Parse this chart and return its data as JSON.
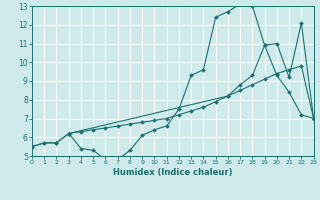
{
  "xlabel": "Humidex (Indice chaleur)",
  "xlim": [
    0,
    23
  ],
  "ylim": [
    5,
    13
  ],
  "xticks": [
    0,
    1,
    2,
    3,
    4,
    5,
    6,
    7,
    8,
    9,
    10,
    11,
    12,
    13,
    14,
    15,
    16,
    17,
    18,
    19,
    20,
    21,
    22,
    23
  ],
  "yticks": [
    5,
    6,
    7,
    8,
    9,
    10,
    11,
    12,
    13
  ],
  "bg_color": "#ceeaea",
  "line_color": "#1a7070",
  "grid_color": "#b8d8d8",
  "line1_x": [
    0,
    1,
    2,
    3,
    4,
    5,
    6,
    7,
    8,
    9,
    10,
    11,
    12,
    13,
    14,
    15,
    16,
    17,
    18,
    19,
    20,
    21,
    22,
    23
  ],
  "line1_y": [
    5.5,
    5.7,
    5.7,
    6.2,
    5.4,
    5.3,
    4.8,
    4.8,
    5.3,
    6.1,
    6.4,
    6.6,
    7.5,
    9.3,
    9.6,
    12.4,
    12.7,
    13.1,
    13.0,
    10.9,
    9.3,
    8.4,
    7.2,
    7.0
  ],
  "line2_x": [
    0,
    1,
    2,
    3,
    4,
    5,
    6,
    7,
    8,
    9,
    10,
    11,
    12,
    13,
    14,
    15,
    16,
    17,
    18,
    19,
    20,
    21,
    22,
    23
  ],
  "line2_y": [
    5.5,
    5.7,
    5.7,
    6.2,
    6.3,
    6.4,
    6.5,
    6.6,
    6.7,
    6.8,
    6.9,
    7.0,
    7.2,
    7.4,
    7.6,
    7.9,
    8.2,
    8.5,
    8.8,
    9.1,
    9.4,
    9.6,
    9.8,
    7.0
  ],
  "line3_x": [
    3,
    16,
    17,
    18,
    19,
    20,
    21,
    22,
    23
  ],
  "line3_y": [
    6.2,
    8.2,
    8.8,
    9.3,
    10.9,
    11.0,
    9.2,
    12.1,
    7.0
  ]
}
